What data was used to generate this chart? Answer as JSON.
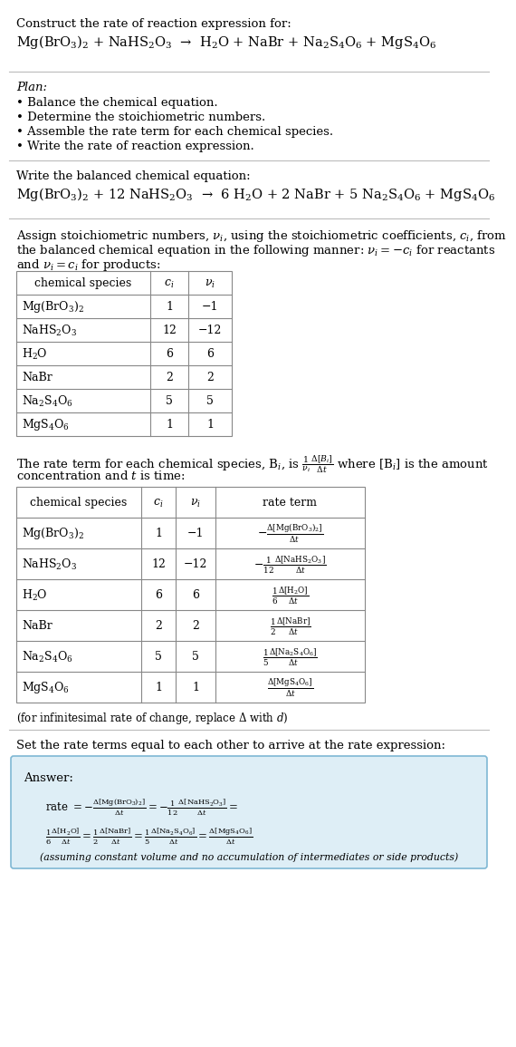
{
  "bg_color": "#ffffff",
  "text_color": "#000000",
  "title_line1": "Construct the rate of reaction expression for:",
  "reaction_unbalanced": "Mg(BrO$_3$)$_2$ + NaHS$_2$O$_3$  →  H$_2$O + NaBr + Na$_2$S$_4$O$_6$ + MgS$_4$O$_6$",
  "plan_title": "Plan:",
  "plan_items": [
    "• Balance the chemical equation.",
    "• Determine the stoichiometric numbers.",
    "• Assemble the rate term for each chemical species.",
    "• Write the rate of reaction expression."
  ],
  "balanced_label": "Write the balanced chemical equation:",
  "reaction_balanced": "Mg(BrO$_3$)$_2$ + 12 NaHS$_2$O$_3$  →  6 H$_2$O + 2 NaBr + 5 Na$_2$S$_4$O$_6$ + MgS$_4$O$_6$",
  "assign_line1": "Assign stoichiometric numbers, $\\nu_i$, using the stoichiometric coefficients, $c_i$, from",
  "assign_line2": "the balanced chemical equation in the following manner: $\\nu_i = -c_i$ for reactants",
  "assign_line3": "and $\\nu_i = c_i$ for products:",
  "table1_headers": [
    "chemical species",
    "$c_i$",
    "$\\nu_i$"
  ],
  "table1_species": [
    "Mg(BrO$_3$)$_2$",
    "NaHS$_2$O$_3$",
    "H$_2$O",
    "NaBr",
    "Na$_2$S$_4$O$_6$",
    "MgS$_4$O$_6$"
  ],
  "table1_ci": [
    "1",
    "12",
    "6",
    "2",
    "5",
    "1"
  ],
  "table1_vi": [
    "−1",
    "−12",
    "6",
    "2",
    "5",
    "1"
  ],
  "rate_line1": "The rate term for each chemical species, B$_i$, is $\\frac{1}{\\nu_i}\\frac{\\Delta[B_i]}{\\Delta t}$ where [B$_i$] is the amount",
  "rate_line2": "concentration and $t$ is time:",
  "table2_headers": [
    "chemical species",
    "$c_i$",
    "$\\nu_i$",
    "rate term"
  ],
  "table2_species": [
    "Mg(BrO$_3$)$_2$",
    "NaHS$_2$O$_3$",
    "H$_2$O",
    "NaBr",
    "Na$_2$S$_4$O$_6$",
    "MgS$_4$O$_6$"
  ],
  "table2_ci": [
    "1",
    "12",
    "6",
    "2",
    "5",
    "1"
  ],
  "table2_vi": [
    "−1",
    "−12",
    "6",
    "2",
    "5",
    "1"
  ],
  "table2_rate_terms": [
    "$-\\frac{\\Delta[\\mathrm{Mg(BrO_3)_2}]}{\\Delta t}$",
    "$-\\frac{1}{12}\\frac{\\Delta[\\mathrm{NaHS_2O_3}]}{\\Delta t}$",
    "$\\frac{1}{6}\\frac{\\Delta[\\mathrm{H_2O}]}{\\Delta t}$",
    "$\\frac{1}{2}\\frac{\\Delta[\\mathrm{NaBr}]}{\\Delta t}$",
    "$\\frac{1}{5}\\frac{\\Delta[\\mathrm{Na_2S_4O_6}]}{\\Delta t}$",
    "$\\frac{\\Delta[\\mathrm{MgS_4O_6}]}{\\Delta t}$"
  ],
  "infinitesimal_note": "(for infinitesimal rate of change, replace Δ with $d$)",
  "set_rate_text": "Set the rate terms equal to each other to arrive at the rate expression:",
  "answer_label": "Answer:",
  "answer_box_color": "#deeef6",
  "answer_border_color": "#7fb8d4",
  "answer_rate_line1": "rate $= -\\frac{\\Delta[\\mathrm{Mg(BrO_3)_2}]}{\\Delta t} = -\\frac{1}{12}\\frac{\\Delta[\\mathrm{NaHS_2O_3}]}{\\Delta t} =$",
  "answer_rate_line2": "$\\frac{1}{6}\\frac{\\Delta[\\mathrm{H_2O}]}{\\Delta t} = \\frac{1}{2}\\frac{\\Delta[\\mathrm{NaBr}]}{\\Delta t} = \\frac{1}{5}\\frac{\\Delta[\\mathrm{Na_2S_4O_6}]}{\\Delta t} = \\frac{\\Delta[\\mathrm{MgS_4O_6}]}{\\Delta t}$",
  "assuming_text": "(assuming constant volume and no accumulation of intermediates or side products)"
}
